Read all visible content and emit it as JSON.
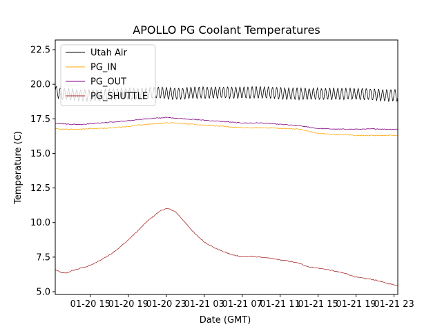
{
  "chart_data": {
    "type": "line",
    "title": "APOLLO PG Coolant Temperatures",
    "xlabel": "Date (GMT)",
    "ylabel": "Temperature (C)",
    "xlim": [
      11.3,
      47.4
    ],
    "ylim": [
      4.8,
      23.2
    ],
    "grid": false,
    "legend_position": "top-left",
    "x_unit": "hours since 01-20 00:00 GMT",
    "x_ticks": [
      {
        "value": 15,
        "label": "01-20 15"
      },
      {
        "value": 19,
        "label": "01-20 19"
      },
      {
        "value": 23,
        "label": "01-20 23"
      },
      {
        "value": 27,
        "label": "01-21 03"
      },
      {
        "value": 31,
        "label": "01-21 07"
      },
      {
        "value": 35,
        "label": "01-21 11"
      },
      {
        "value": 39,
        "label": "01-21 15"
      },
      {
        "value": 43,
        "label": "01-21 19"
      },
      {
        "value": 47,
        "label": "01-21 23"
      }
    ],
    "y_ticks": [
      {
        "value": 5.0,
        "label": "5.0"
      },
      {
        "value": 7.5,
        "label": "7.5"
      },
      {
        "value": 10.0,
        "label": "10.0"
      },
      {
        "value": 12.5,
        "label": "12.5"
      },
      {
        "value": 15.0,
        "label": "15.0"
      },
      {
        "value": 17.5,
        "label": "17.5"
      },
      {
        "value": 20.0,
        "label": "20.0"
      },
      {
        "value": 22.5,
        "label": "22.5"
      }
    ],
    "series": [
      {
        "name": "Utah Air",
        "color": "#000000",
        "style": "oscillating",
        "oscillation_amplitude": 0.4,
        "oscillation_period_hours": 0.43,
        "x": [
          11.3,
          12,
          14,
          16,
          18,
          20,
          22,
          24,
          26,
          28,
          30,
          32,
          34,
          36,
          38,
          40,
          42,
          44,
          46,
          47.4
        ],
        "y": [
          19.5,
          19.3,
          19.2,
          19.2,
          19.3,
          19.3,
          19.4,
          19.3,
          19.4,
          19.4,
          19.4,
          19.4,
          19.4,
          19.3,
          19.3,
          19.3,
          19.3,
          19.3,
          19.2,
          19.2
        ]
      },
      {
        "name": "PG_IN",
        "color": "#ffa500",
        "style": "line",
        "x": [
          11.3,
          12,
          13,
          14,
          15,
          16,
          17,
          18,
          19,
          20,
          21,
          22,
          23,
          24,
          25,
          26,
          27,
          28,
          29,
          30,
          31,
          32,
          33,
          34,
          35,
          36,
          37,
          38,
          39,
          40,
          41,
          42,
          43,
          44,
          45,
          46,
          47,
          47.4
        ],
        "y": [
          16.8,
          16.75,
          16.75,
          16.75,
          16.8,
          16.8,
          16.85,
          16.9,
          16.95,
          17.05,
          17.1,
          17.15,
          17.2,
          17.2,
          17.15,
          17.1,
          17.05,
          17.0,
          16.95,
          16.9,
          16.85,
          16.85,
          16.85,
          16.85,
          16.8,
          16.8,
          16.75,
          16.6,
          16.45,
          16.4,
          16.35,
          16.35,
          16.3,
          16.3,
          16.3,
          16.3,
          16.3,
          16.3
        ]
      },
      {
        "name": "PG_OUT",
        "color": "#800080",
        "style": "line",
        "x": [
          11.3,
          12,
          13,
          14,
          15,
          16,
          17,
          18,
          19,
          20,
          21,
          22,
          23,
          24,
          25,
          26,
          27,
          28,
          29,
          30,
          31,
          32,
          33,
          34,
          35,
          36,
          37,
          38,
          39,
          40,
          41,
          42,
          43,
          44,
          45,
          46,
          47,
          47.4
        ],
        "y": [
          17.2,
          17.15,
          17.1,
          17.1,
          17.15,
          17.2,
          17.25,
          17.3,
          17.35,
          17.45,
          17.5,
          17.55,
          17.6,
          17.55,
          17.5,
          17.45,
          17.4,
          17.35,
          17.3,
          17.25,
          17.2,
          17.2,
          17.2,
          17.15,
          17.1,
          17.05,
          17.0,
          16.9,
          16.8,
          16.78,
          16.75,
          16.75,
          16.75,
          16.75,
          16.78,
          16.75,
          16.75,
          16.75
        ]
      },
      {
        "name": "PG_SHUTTLE",
        "color": "#a52a2a",
        "style": "line",
        "x": [
          11.3,
          11.7,
          12.1,
          12.5,
          13,
          14,
          15,
          16,
          17,
          18,
          19,
          20,
          21,
          22,
          22.5,
          23,
          23.5,
          24,
          25,
          26,
          27,
          28,
          29,
          30,
          31,
          32,
          33,
          34,
          35,
          36,
          37,
          38,
          39,
          40,
          41,
          42,
          43,
          44,
          45,
          46,
          47,
          47.4
        ],
        "y": [
          6.6,
          6.45,
          6.35,
          6.35,
          6.5,
          6.7,
          6.9,
          7.25,
          7.65,
          8.15,
          8.75,
          9.4,
          10.1,
          10.65,
          10.9,
          11.0,
          10.95,
          10.75,
          10.0,
          9.2,
          8.6,
          8.2,
          7.9,
          7.65,
          7.55,
          7.55,
          7.5,
          7.4,
          7.3,
          7.2,
          7.05,
          6.8,
          6.7,
          6.6,
          6.45,
          6.3,
          6.05,
          5.95,
          5.85,
          5.65,
          5.5,
          5.45
        ]
      }
    ]
  }
}
